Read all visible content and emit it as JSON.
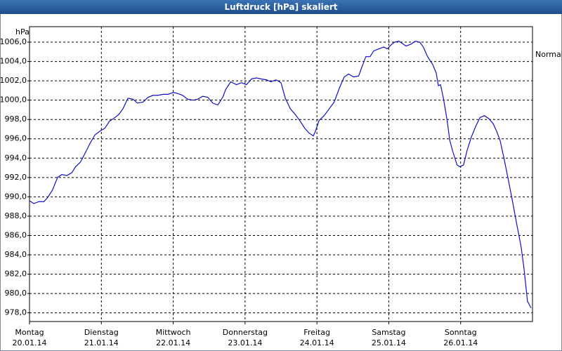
{
  "chart_data": {
    "type": "line",
    "title": "Luftdruck [hPa] skaliert",
    "y_label": "hPa",
    "annotation": {
      "text": "Normal",
      "value": 1004.7
    },
    "color": "#1010c8",
    "grid": true,
    "xlim": [
      0,
      7
    ],
    "xticks": [
      {
        "value": 0,
        "label": "Montag",
        "date": "20.01.14"
      },
      {
        "value": 1,
        "label": "Dienstag",
        "date": "21.01.14"
      },
      {
        "value": 2,
        "label": "Mittwoch",
        "date": "22.01.14"
      },
      {
        "value": 3,
        "label": "Donnerstag",
        "date": "23.01.14"
      },
      {
        "value": 4,
        "label": "Freitag",
        "date": "24.01.14"
      },
      {
        "value": 5,
        "label": "Samstag",
        "date": "25.01.14"
      },
      {
        "value": 6,
        "label": "Sonntag",
        "date": "26.01.14"
      }
    ],
    "ylim": [
      977.1,
      1007.6
    ],
    "yticks": [
      {
        "value": 978,
        "label": "978,0"
      },
      {
        "value": 980,
        "label": "980,0"
      },
      {
        "value": 982,
        "label": "982,0"
      },
      {
        "value": 984,
        "label": "984,0"
      },
      {
        "value": 986,
        "label": "986,0"
      },
      {
        "value": 988,
        "label": "988,0"
      },
      {
        "value": 990,
        "label": "990,0"
      },
      {
        "value": 992,
        "label": "992,0"
      },
      {
        "value": 994,
        "label": "994,0"
      },
      {
        "value": 996,
        "label": "996,0"
      },
      {
        "value": 998,
        "label": "998,0"
      },
      {
        "value": 1000,
        "label": "1000,0"
      },
      {
        "value": 1002,
        "label": "1002,0"
      },
      {
        "value": 1004,
        "label": "1004,0"
      },
      {
        "value": 1006,
        "label": "1006,0"
      }
    ],
    "x": [
      0,
      0.06,
      0.13,
      0.2,
      0.25,
      0.32,
      0.39,
      0.45,
      0.52,
      0.59,
      0.64,
      0.71,
      0.78,
      0.84,
      0.91,
      0.98,
      1.05,
      1.11,
      1.17,
      1.24,
      1.3,
      1.37,
      1.44,
      1.5,
      1.58,
      1.65,
      1.72,
      1.79,
      1.86,
      1.93,
      2.0,
      2.06,
      2.13,
      2.2,
      2.28,
      2.34,
      2.41,
      2.48,
      2.55,
      2.62,
      2.69,
      2.73,
      2.8,
      2.88,
      2.95,
      3.02,
      3.09,
      3.16,
      3.22,
      3.3,
      3.36,
      3.43,
      3.5,
      3.56,
      3.63,
      3.69,
      3.76,
      3.83,
      3.89,
      3.95,
      3.98,
      4.03,
      4.1,
      4.17,
      4.24,
      4.31,
      4.38,
      4.44,
      4.51,
      4.58,
      4.63,
      4.68,
      4.74,
      4.79,
      4.86,
      4.93,
      4.98,
      5.03,
      5.08,
      5.14,
      5.2,
      5.24,
      5.31,
      5.37,
      5.43,
      5.48,
      5.54,
      5.61,
      5.66,
      5.69,
      5.72,
      5.76,
      5.81,
      5.85,
      5.89,
      5.95,
      5.99,
      6.04,
      6.09,
      6.15,
      6.21,
      6.27,
      6.33,
      6.39,
      6.45,
      6.5,
      6.55,
      6.6,
      6.66,
      6.72,
      6.78,
      6.84,
      6.88,
      6.93,
      6.98
    ],
    "values": [
      989.6,
      989.3,
      989.5,
      989.5,
      989.9,
      990.7,
      992.0,
      992.3,
      992.2,
      992.5,
      993.1,
      993.6,
      994.6,
      995.5,
      996.4,
      996.8,
      997.1,
      997.8,
      998.1,
      998.5,
      999.1,
      1000.2,
      1000.1,
      999.7,
      999.8,
      1000.3,
      1000.5,
      1000.5,
      1000.6,
      1000.6,
      1000.8,
      1000.7,
      1000.5,
      1000.1,
      1000.0,
      1000.1,
      1000.4,
      1000.3,
      999.7,
      999.5,
      1000.3,
      1001.1,
      1001.9,
      1001.6,
      1001.8,
      1001.6,
      1002.2,
      1002.3,
      1002.2,
      1002.1,
      1001.9,
      1002.1,
      1001.8,
      1000.2,
      999.1,
      998.6,
      997.9,
      997.1,
      996.6,
      996.3,
      996.8,
      997.9,
      998.4,
      999.1,
      999.8,
      1001.2,
      1002.4,
      1002.7,
      1002.4,
      1002.5,
      1003.5,
      1004.5,
      1004.5,
      1005.1,
      1005.3,
      1005.5,
      1005.3,
      1005.7,
      1006.0,
      1006.1,
      1005.8,
      1005.6,
      1005.8,
      1006.1,
      1006.0,
      1005.5,
      1004.5,
      1003.7,
      1002.8,
      1001.5,
      1001.6,
      1000.2,
      998.0,
      995.8,
      994.7,
      993.3,
      993.1,
      993.3,
      994.8,
      996.2,
      997.3,
      998.2,
      998.4,
      998.1,
      997.6,
      996.8,
      995.8,
      994.1,
      991.9,
      989.6,
      987.2,
      984.9,
      982.7,
      979.2,
      978.5
    ]
  }
}
